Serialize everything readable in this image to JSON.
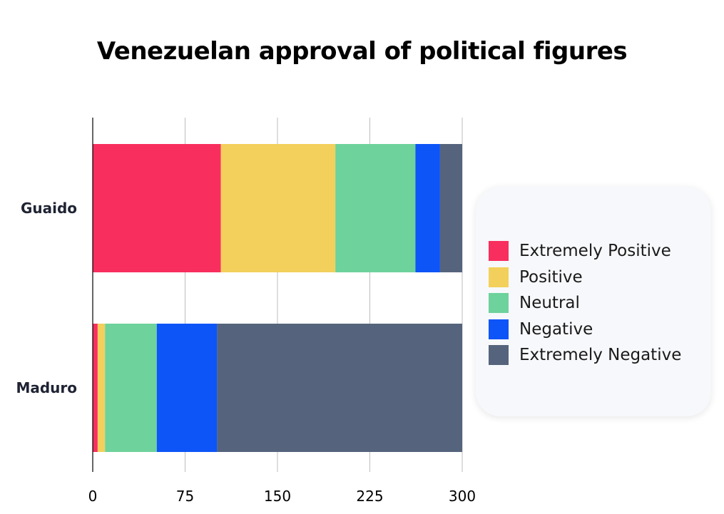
{
  "chart_data": {
    "type": "bar",
    "orientation": "horizontal",
    "stacked": true,
    "title": "Venezuelan approval of political figures",
    "xlabel": "",
    "ylabel": "",
    "categories": [
      "Guaido",
      "Maduro"
    ],
    "xlim": [
      0,
      300
    ],
    "xticks": [
      0,
      75,
      150,
      225,
      300
    ],
    "x_tick_labels": [
      "0",
      "75",
      "150",
      "225",
      "300"
    ],
    "grid": "vertical",
    "legend_position": "right",
    "series": [
      {
        "name": "Extremely Positive",
        "color": "#f82e5e",
        "values": [
          104,
          4
        ]
      },
      {
        "name": "Positive",
        "color": "#f2d05b",
        "values": [
          93,
          6
        ]
      },
      {
        "name": "Neutral",
        "color": "#6dd29b",
        "values": [
          65,
          42
        ]
      },
      {
        "name": "Negative",
        "color": "#0d55f7",
        "values": [
          20,
          49
        ]
      },
      {
        "name": "Extremely Negative",
        "color": "#55647c",
        "values": [
          18,
          199
        ]
      }
    ]
  }
}
